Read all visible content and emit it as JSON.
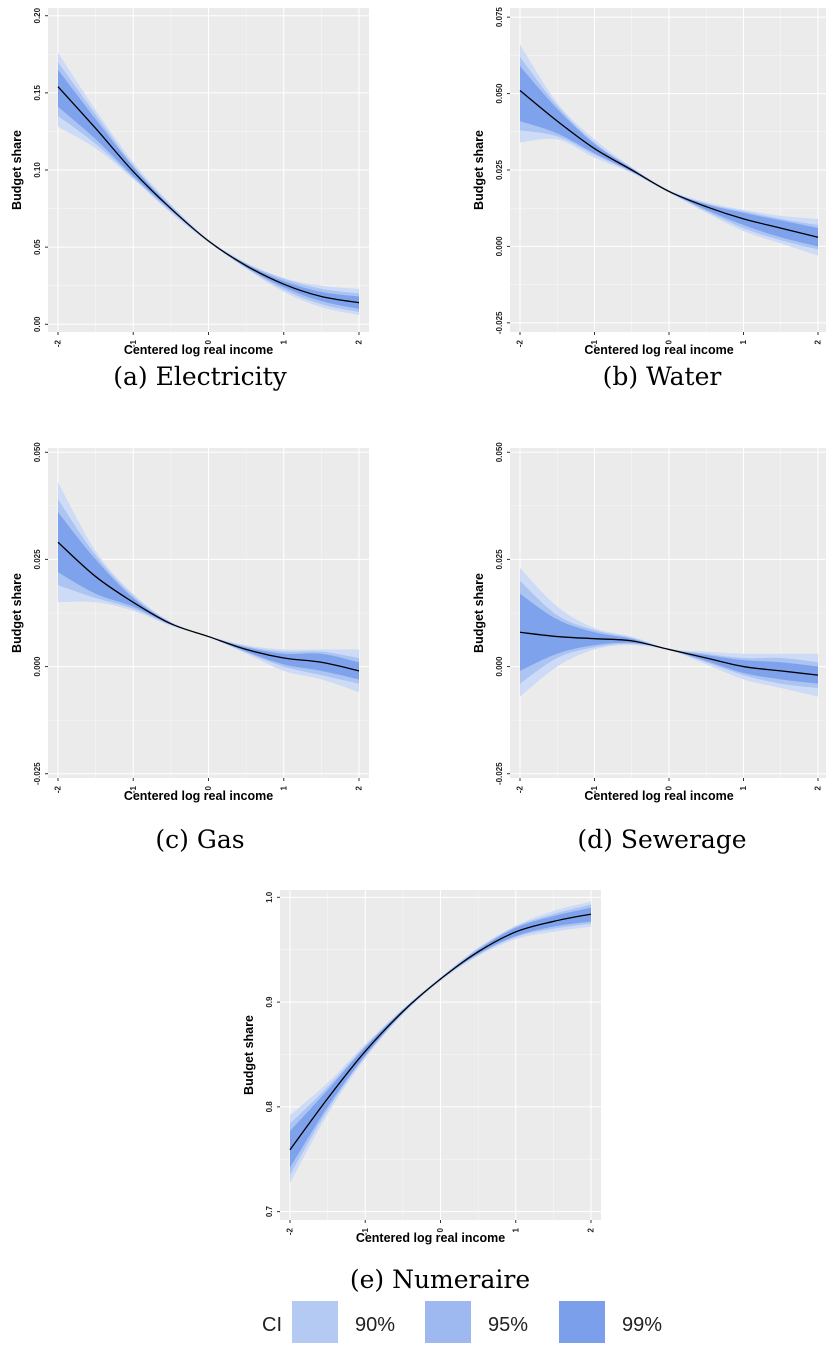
{
  "style": {
    "panel_bg": "#EBEBEB",
    "grid_major": "#FFFFFF",
    "band_colors": [
      "#CEDBF6",
      "#ACC4F2",
      "#7FA2EC"
    ],
    "line_color": "#000000"
  },
  "legend": {
    "title": "CI",
    "entries": [
      {
        "label": "90%",
        "color": "#B5CAF3"
      },
      {
        "label": "95%",
        "color": "#9DB9F0"
      },
      {
        "label": "99%",
        "color": "#7B9FEA"
      }
    ]
  },
  "chart_data": [
    {
      "type": "line",
      "caption": "(a) Electricity",
      "xlabel": "Centered log real income",
      "ylabel": "Budget share",
      "xlim": [
        -2,
        2
      ],
      "ylim": [
        -0.005,
        0.205
      ],
      "xticks": [
        -2,
        -1,
        0,
        1,
        2
      ],
      "yticks": [
        0.0,
        0.05,
        0.1,
        0.15,
        0.2
      ],
      "ytick_labels": [
        "0.00",
        "0.05",
        "0.10",
        "0.15",
        "0.20"
      ],
      "x": [
        -2,
        -1.5,
        -1,
        -0.5,
        0,
        0.5,
        1,
        1.5,
        2
      ],
      "series": [
        {
          "values": [
            0.154,
            0.127,
            0.099,
            0.075,
            0.054,
            0.038,
            0.026,
            0.018,
            0.014
          ]
        }
      ],
      "bands": [
        {
          "lower": [
            0.128,
            0.114,
            0.094,
            0.072,
            0.053,
            0.036,
            0.021,
            0.011,
            0.006
          ],
          "upper": [
            0.176,
            0.139,
            0.105,
            0.078,
            0.055,
            0.04,
            0.03,
            0.025,
            0.023
          ]
        },
        {
          "lower": [
            0.135,
            0.117,
            0.095,
            0.073,
            0.0535,
            0.0365,
            0.0225,
            0.013,
            0.008
          ],
          "upper": [
            0.17,
            0.136,
            0.103,
            0.077,
            0.0545,
            0.0395,
            0.0295,
            0.023,
            0.02
          ]
        },
        {
          "lower": [
            0.141,
            0.12,
            0.096,
            0.074,
            0.0537,
            0.037,
            0.024,
            0.015,
            0.01
          ],
          "upper": [
            0.165,
            0.133,
            0.102,
            0.076,
            0.0543,
            0.039,
            0.028,
            0.021,
            0.018
          ]
        }
      ]
    },
    {
      "type": "line",
      "caption": "(b) Water",
      "xlabel": "Centered log real income",
      "ylabel": "Budget share",
      "xlim": [
        -2,
        2
      ],
      "ylim": [
        -0.028,
        0.078
      ],
      "xticks": [
        -2,
        -1,
        0,
        1,
        2
      ],
      "yticks": [
        -0.025,
        0.0,
        0.025,
        0.05,
        0.075
      ],
      "ytick_labels": [
        "-0.025",
        "0.000",
        "0.025",
        "0.050",
        "0.075"
      ],
      "x": [
        -2,
        -1.5,
        -1,
        -0.5,
        0,
        0.5,
        1,
        1.5,
        2
      ],
      "series": [
        {
          "values": [
            0.051,
            0.041,
            0.032,
            0.025,
            0.018,
            0.013,
            0.009,
            0.006,
            0.003
          ]
        }
      ],
      "bands": [
        {
          "lower": [
            0.034,
            0.035,
            0.029,
            0.024,
            0.0175,
            0.011,
            0.005,
            0.001,
            -0.003
          ],
          "upper": [
            0.066,
            0.047,
            0.035,
            0.026,
            0.0185,
            0.0145,
            0.012,
            0.01,
            0.009
          ]
        },
        {
          "lower": [
            0.038,
            0.036,
            0.03,
            0.0243,
            0.0177,
            0.0115,
            0.006,
            0.002,
            -0.001
          ],
          "upper": [
            0.062,
            0.046,
            0.034,
            0.0257,
            0.0183,
            0.014,
            0.0115,
            0.009,
            0.007
          ]
        },
        {
          "lower": [
            0.041,
            0.037,
            0.0305,
            0.0245,
            0.0178,
            0.012,
            0.007,
            0.003,
            0.0
          ],
          "upper": [
            0.059,
            0.045,
            0.0335,
            0.0255,
            0.0182,
            0.0138,
            0.011,
            0.0085,
            0.006
          ]
        }
      ]
    },
    {
      "type": "line",
      "caption": "(c) Gas",
      "xlabel": "Centered log real income",
      "ylabel": "Budget share",
      "xlim": [
        -2,
        2
      ],
      "ylim": [
        -0.026,
        0.051
      ],
      "xticks": [
        -2,
        -1,
        0,
        1,
        2
      ],
      "yticks": [
        -0.025,
        0.0,
        0.025,
        0.05
      ],
      "ytick_labels": [
        "-0.025",
        "0.000",
        "0.025",
        "0.050"
      ],
      "x": [
        -2,
        -1.5,
        -1,
        -0.5,
        0,
        0.5,
        1,
        1.5,
        2
      ],
      "series": [
        {
          "values": [
            0.029,
            0.021,
            0.015,
            0.01,
            0.007,
            0.004,
            0.002,
            0.001,
            -0.001
          ]
        }
      ],
      "bands": [
        {
          "lower": [
            0.015,
            0.015,
            0.013,
            0.0095,
            0.0068,
            0.003,
            -0.001,
            -0.003,
            -0.006
          ],
          "upper": [
            0.043,
            0.027,
            0.017,
            0.0105,
            0.0072,
            0.005,
            0.004,
            0.004,
            0.004
          ]
        },
        {
          "lower": [
            0.019,
            0.016,
            0.0135,
            0.0097,
            0.0069,
            0.0033,
            0.0,
            -0.002,
            -0.004
          ],
          "upper": [
            0.039,
            0.026,
            0.0165,
            0.0103,
            0.0071,
            0.0047,
            0.0035,
            0.0035,
            0.002
          ]
        },
        {
          "lower": [
            0.022,
            0.017,
            0.014,
            0.0098,
            0.00695,
            0.0035,
            0.0005,
            -0.001,
            -0.003
          ],
          "upper": [
            0.036,
            0.025,
            0.016,
            0.0102,
            0.00705,
            0.0045,
            0.003,
            0.003,
            0.001
          ]
        }
      ]
    },
    {
      "type": "line",
      "caption": "(d) Sewerage",
      "xlabel": "Centered log real income",
      "ylabel": "Budget share",
      "xlim": [
        -2,
        2
      ],
      "ylim": [
        -0.026,
        0.051
      ],
      "xticks": [
        -2,
        -1,
        0,
        1,
        2
      ],
      "yticks": [
        -0.025,
        0.0,
        0.025,
        0.05
      ],
      "ytick_labels": [
        "-0.025",
        "0.000",
        "0.025",
        "0.050"
      ],
      "x": [
        -2,
        -1.5,
        -1,
        -0.5,
        0,
        0.5,
        1,
        1.5,
        2
      ],
      "series": [
        {
          "values": [
            0.008,
            0.007,
            0.0065,
            0.006,
            0.004,
            0.002,
            0.0,
            -0.001,
            -0.002
          ]
        }
      ],
      "bands": [
        {
          "lower": [
            -0.007,
            0.0,
            0.004,
            0.005,
            0.0038,
            0.0005,
            -0.003,
            -0.005,
            -0.007
          ],
          "upper": [
            0.023,
            0.014,
            0.009,
            0.007,
            0.0042,
            0.0035,
            0.003,
            0.003,
            0.003
          ]
        },
        {
          "lower": [
            -0.004,
            0.002,
            0.0045,
            0.0053,
            0.0039,
            0.001,
            -0.002,
            -0.004,
            -0.005
          ],
          "upper": [
            0.02,
            0.012,
            0.0085,
            0.0067,
            0.0041,
            0.003,
            0.002,
            0.002,
            0.001
          ]
        },
        {
          "lower": [
            -0.001,
            0.003,
            0.005,
            0.0055,
            0.00395,
            0.0013,
            -0.0015,
            -0.003,
            -0.004
          ],
          "upper": [
            0.017,
            0.011,
            0.008,
            0.0065,
            0.00405,
            0.0027,
            0.0015,
            0.001,
            0.0
          ]
        }
      ]
    },
    {
      "type": "line",
      "caption": "(e) Numeraire",
      "xlabel": "Centered log real income",
      "ylabel": "Budget share",
      "xlim": [
        -2,
        2
      ],
      "ylim": [
        0.692,
        1.007
      ],
      "xticks": [
        -2,
        -1,
        0,
        1,
        2
      ],
      "yticks": [
        0.7,
        0.8,
        0.9,
        1.0
      ],
      "ytick_labels": [
        "0.7",
        "0.8",
        "0.9",
        "1.0"
      ],
      "x": [
        -2,
        -1.5,
        -1,
        -0.5,
        0,
        0.5,
        1,
        1.5,
        2
      ],
      "series": [
        {
          "values": [
            0.759,
            0.808,
            0.853,
            0.891,
            0.922,
            0.948,
            0.967,
            0.977,
            0.984
          ]
        }
      ],
      "bands": [
        {
          "lower": [
            0.727,
            0.793,
            0.846,
            0.888,
            0.92,
            0.944,
            0.96,
            0.967,
            0.972
          ],
          "upper": [
            0.792,
            0.823,
            0.86,
            0.894,
            0.924,
            0.952,
            0.973,
            0.987,
            0.996
          ]
        },
        {
          "lower": [
            0.735,
            0.797,
            0.848,
            0.889,
            0.921,
            0.945,
            0.962,
            0.97,
            0.975
          ],
          "upper": [
            0.784,
            0.819,
            0.858,
            0.893,
            0.923,
            0.951,
            0.972,
            0.984,
            0.993
          ]
        },
        {
          "lower": [
            0.742,
            0.8,
            0.849,
            0.8895,
            0.9213,
            0.946,
            0.963,
            0.972,
            0.977
          ],
          "upper": [
            0.777,
            0.816,
            0.857,
            0.8925,
            0.9227,
            0.95,
            0.971,
            0.982,
            0.99
          ]
        }
      ]
    }
  ]
}
